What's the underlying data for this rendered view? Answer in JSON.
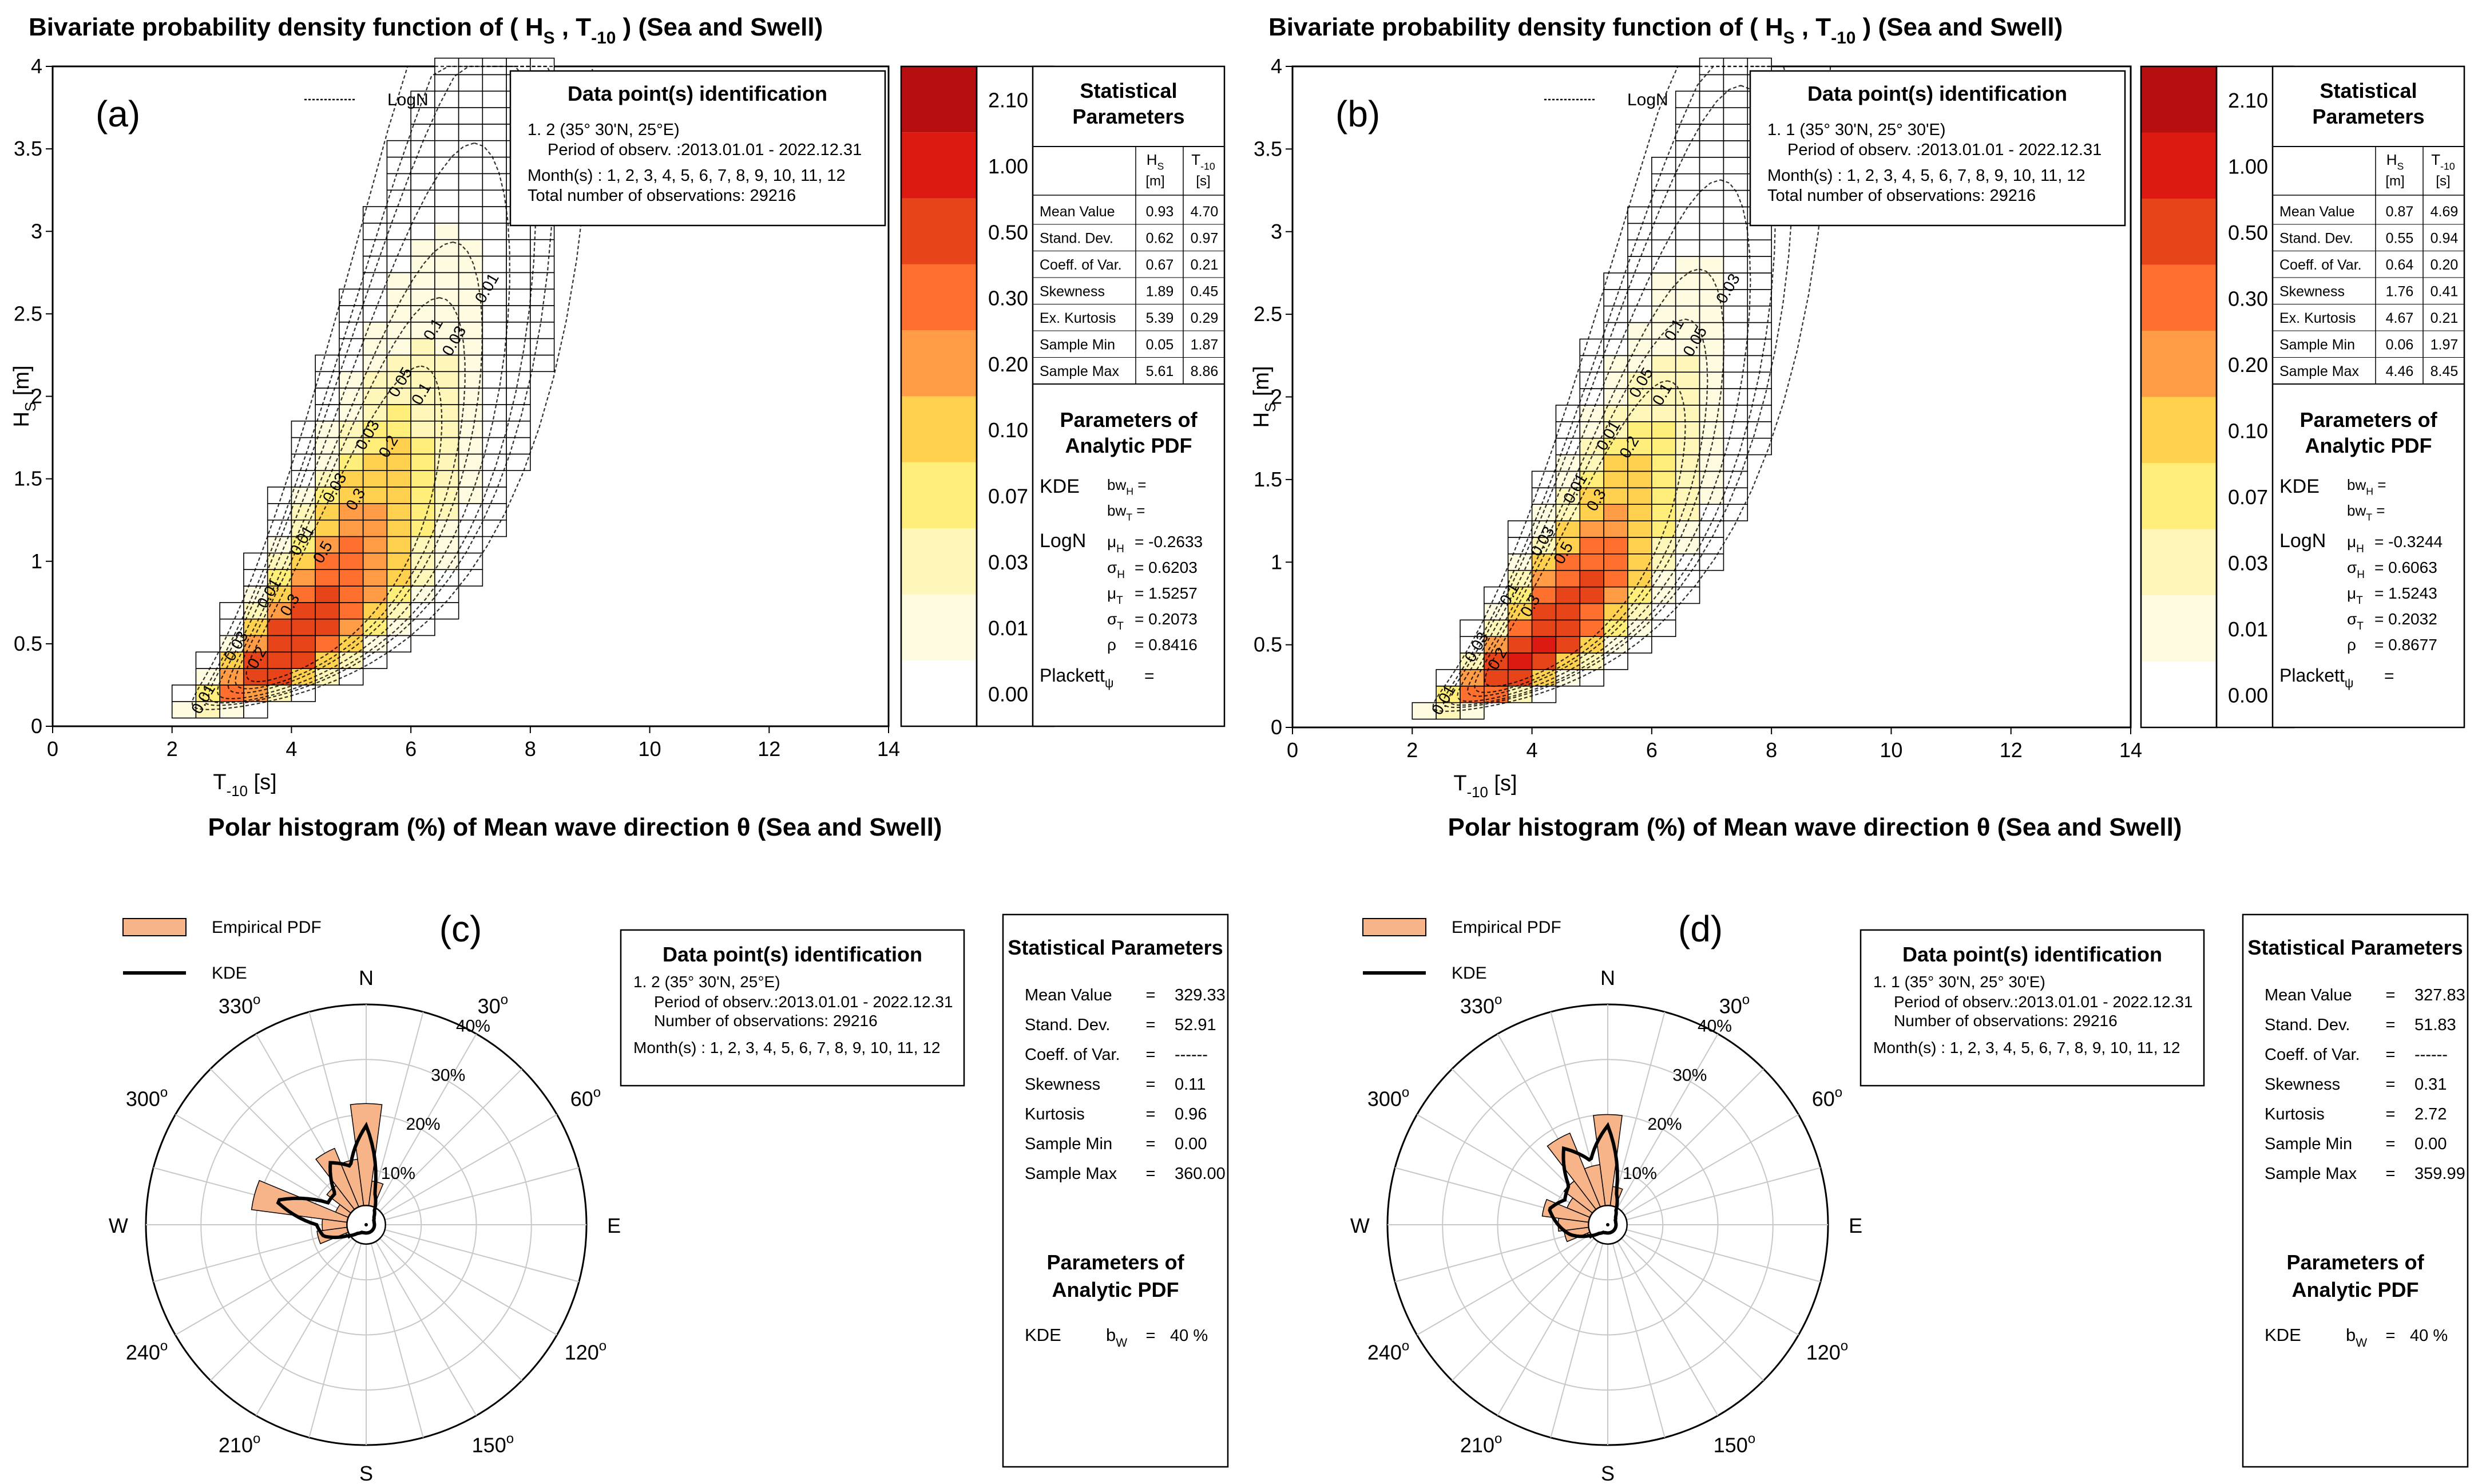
{
  "colors": {
    "legend_bins": [
      "#ffffff",
      "#fffbe0",
      "#fff6b9",
      "#ffef7a",
      "#ffd14e",
      "#ff9c45",
      "#ff6f2e",
      "#e8441a",
      "#dd1a11",
      "#b70e10"
    ],
    "empirical": "#f7b488",
    "outline": "#000000",
    "grid": "#c8c8c8"
  },
  "bivariate_panels": [
    {
      "title_main": "Bivariate probability density function of ( H",
      "title_sub1": "S",
      "title_comma": " , T",
      "title_sub2": "-10",
      "title_tail": " ) (Sea and Swell)",
      "panel_label": "(a)",
      "legend_logn": "LogN",
      "ylabel_main": "H",
      "ylabel_sub": "S",
      "ylabel_unit": " [m]",
      "xlabel_main": "T",
      "xlabel_sub": "-10",
      "xlabel_unit": " [s]",
      "xticks": [
        "0",
        "2",
        "4",
        "6",
        "8",
        "10",
        "12",
        "14"
      ],
      "yticks": [
        "0",
        "0.5",
        "1",
        "1.5",
        "2",
        "2.5",
        "3",
        "3.5",
        "4"
      ],
      "contour_labels": [
        "0.01",
        "0.03",
        "0.01",
        "0.01",
        "0.03",
        "0.03",
        "0.05",
        "0.1",
        "0.2",
        "0.3",
        "0.5",
        "0.3",
        "0.2",
        "0.1",
        "0.03",
        "0.01"
      ],
      "id_box": {
        "title": "Data point(s) identification",
        "line1": "1. 2  (35° 30'N, 25°E)",
        "line2": "Period of observ. :2013.01.01 - 2022.12.31",
        "line3": "Month(s) : 1, 2, 3, 4, 5, 6, 7, 8, 9, 10, 11, 12",
        "line4": "Total number of observations: 29216"
      },
      "colorbar_labels": [
        "0.00",
        "0.01",
        "0.03",
        "0.07",
        "0.10",
        "0.20",
        "0.30",
        "0.50",
        "1.00",
        "2.10"
      ],
      "stats": {
        "title1": "Statistical",
        "title2": "Parameters",
        "col1": "H",
        "col1_sub": "S",
        "col1_unit": "[m]",
        "col2": "T",
        "col2_sub": "-10",
        "col2_unit": "[s]",
        "rows": [
          {
            "label": "Mean Value",
            "v1": "0.93",
            "v2": "4.70"
          },
          {
            "label": "Stand. Dev.",
            "v1": "0.62",
            "v2": "0.97"
          },
          {
            "label": "Coeff. of Var.",
            "v1": "0.67",
            "v2": "0.21"
          },
          {
            "label": "Skewness",
            "v1": "1.89",
            "v2": "0.45"
          },
          {
            "label": "Ex. Kurtosis",
            "v1": "5.39",
            "v2": "0.29"
          },
          {
            "label": "Sample Min",
            "v1": "0.05",
            "v2": "1.87"
          },
          {
            "label": "Sample Max",
            "v1": "5.61",
            "v2": "8.86"
          }
        ]
      },
      "analytic": {
        "title1": "Parameters of",
        "title2": "Analytic PDF",
        "kde": "KDE",
        "bwh": "bw",
        "bwh_sub": "H",
        "bwh_sub2": "S",
        "bwh_eq": " =",
        "bwt": "bw",
        "bwt_sub": "T",
        "bwt_sub2": "-10",
        "bwt_eq": " =",
        "logn": "LogN",
        "params": [
          {
            "sym": "μ",
            "sub": "H",
            "val": "= -0.2633"
          },
          {
            "sym": "σ",
            "sub": "H",
            "val": "= 0.6203"
          },
          {
            "sym": "μ",
            "sub": "T",
            "val": "= 1.5257"
          },
          {
            "sym": "σ",
            "sub": "T",
            "val": "= 0.2073"
          },
          {
            "sym": "ρ",
            "sub": "",
            "val": "= 0.8416"
          }
        ],
        "plackett": "Plackett",
        "plackett_sub": "ψ",
        "plackett_eq": "="
      }
    },
    {
      "title_main": "Bivariate probability density function of ( H",
      "title_sub1": "S",
      "title_comma": " , T",
      "title_sub2": "-10",
      "title_tail": " ) (Sea and Swell)",
      "panel_label": "(b)",
      "legend_logn": "LogN",
      "ylabel_main": "H",
      "ylabel_sub": "S",
      "ylabel_unit": " [m]",
      "xlabel_main": "T",
      "xlabel_sub": "-10",
      "xlabel_unit": " [s]",
      "xticks": [
        "0",
        "2",
        "4",
        "6",
        "8",
        "10",
        "12",
        "14"
      ],
      "yticks": [
        "0",
        "0.5",
        "1",
        "1.5",
        "2",
        "2.5",
        "3",
        "3.5",
        "4"
      ],
      "contour_labels": [
        "0.01",
        "0.03",
        "0.1",
        "0.03",
        "0.01",
        "0.01",
        "0.05",
        "0.1",
        "0.2",
        "0.3",
        "0.5",
        "0.3",
        "0.2",
        "0.1",
        "0.05",
        "0.03"
      ],
      "id_box": {
        "title": "Data point(s) identification",
        "line1": "1. 1  (35° 30'N, 25° 30'E)",
        "line2": "Period of observ. :2013.01.01 - 2022.12.31",
        "line3": "Month(s) : 1, 2, 3, 4, 5, 6, 7, 8, 9, 10, 11, 12",
        "line4": "Total number of observations: 29216"
      },
      "colorbar_labels": [
        "0.00",
        "0.01",
        "0.03",
        "0.07",
        "0.10",
        "0.20",
        "0.30",
        "0.50",
        "1.00",
        "2.10"
      ],
      "stats": {
        "title1": "Statistical",
        "title2": "Parameters",
        "col1": "H",
        "col1_sub": "S",
        "col1_unit": "[m]",
        "col2": "T",
        "col2_sub": "-10",
        "col2_unit": "[s]",
        "rows": [
          {
            "label": "Mean Value",
            "v1": "0.87",
            "v2": "4.69"
          },
          {
            "label": "Stand. Dev.",
            "v1": "0.55",
            "v2": "0.94"
          },
          {
            "label": "Coeff. of Var.",
            "v1": "0.64",
            "v2": "0.20"
          },
          {
            "label": "Skewness",
            "v1": "1.76",
            "v2": "0.41"
          },
          {
            "label": "Ex. Kurtosis",
            "v1": "4.67",
            "v2": "0.21"
          },
          {
            "label": "Sample Min",
            "v1": "0.06",
            "v2": "1.97"
          },
          {
            "label": "Sample Max",
            "v1": "4.46",
            "v2": "8.45"
          }
        ]
      },
      "analytic": {
        "title1": "Parameters of",
        "title2": "Analytic PDF",
        "kde": "KDE",
        "bwh": "bw",
        "bwh_sub": "H",
        "bwh_sub2": "S",
        "bwh_eq": " =",
        "bwt": "bw",
        "bwt_sub": "T",
        "bwt_sub2": "-10",
        "bwt_eq": " =",
        "logn": "LogN",
        "params": [
          {
            "sym": "μ",
            "sub": "H",
            "val": "= -0.3244"
          },
          {
            "sym": "σ",
            "sub": "H",
            "val": "= 0.6063"
          },
          {
            "sym": "μ",
            "sub": "T",
            "val": "= 1.5243"
          },
          {
            "sym": "σ",
            "sub": "T",
            "val": "= 0.2032"
          },
          {
            "sym": "ρ",
            "sub": "",
            "val": "= 0.8677"
          }
        ],
        "plackett": "Plackett",
        "plackett_sub": "ψ",
        "plackett_eq": "="
      }
    }
  ],
  "polar_panels": [
    {
      "title": "Polar histogram (%) of Mean wave direction  θ  (Sea and Swell)",
      "panel_label": "(c)",
      "legend_empirical": "Empirical PDF",
      "legend_kde": "KDE",
      "dir_labels": {
        "N": "N",
        "E": "E",
        "S": "S",
        "W": "W"
      },
      "angle_labels": [
        "30",
        "60",
        "120",
        "150",
        "210",
        "240",
        "300",
        "330"
      ],
      "angle_suffix": "o",
      "radial_labels": [
        "10%",
        "20%",
        "30%",
        "40%"
      ],
      "id_box": {
        "title": "Data point(s) identification",
        "line1": "1. 2  (35° 30'N, 25°E)",
        "line2": "Period of observ.:2013.01.01 - 2022.12.31",
        "line3": "Number of observations: 29216",
        "line4": "Month(s) : 1, 2, 3, 4, 5, 6, 7, 8, 9, 10, 11, 12"
      },
      "stats": {
        "title": "Statistical Parameters",
        "rows": [
          {
            "label": "Mean Value",
            "eq": "=",
            "val": "329.33"
          },
          {
            "label": "Stand. Dev.",
            "eq": "=",
            "val": "52.91"
          },
          {
            "label": "Coeff. of Var.",
            "eq": "=",
            "val": "------"
          },
          {
            "label": "Skewness",
            "eq": "=",
            "val": "0.11"
          },
          {
            "label": "Kurtosis",
            "eq": "=",
            "val": "0.96"
          },
          {
            "label": "Sample Min",
            "eq": "=",
            "val": "0.00"
          },
          {
            "label": "Sample Max",
            "eq": "=",
            "val": "360.00"
          }
        ],
        "analytic_title1": "Parameters of",
        "analytic_title2": "Analytic PDF",
        "kde": "KDE",
        "bw": "b",
        "bw_sub": "W",
        "bw_eq": "=",
        "bw_val": "40 %"
      }
    },
    {
      "title": "Polar histogram (%) of Mean wave direction  θ  (Sea and Swell)",
      "panel_label": "(d)",
      "legend_empirical": "Empirical PDF",
      "legend_kde": "KDE",
      "dir_labels": {
        "N": "N",
        "E": "E",
        "S": "S",
        "W": "W"
      },
      "angle_labels": [
        "30",
        "60",
        "120",
        "150",
        "210",
        "240",
        "300",
        "330"
      ],
      "angle_suffix": "o",
      "radial_labels": [
        "10%",
        "20%",
        "30%",
        "40%"
      ],
      "id_box": {
        "title": "Data point(s) identification",
        "line1": "1. 1  (35° 30'N, 25° 30'E)",
        "line2": "Period of observ.:2013.01.01 - 2022.12.31",
        "line3": "Number of observations: 29216",
        "line4": "Month(s) : 1, 2, 3, 4, 5, 6, 7, 8, 9, 10, 11, 12"
      },
      "stats": {
        "title": "Statistical Parameters",
        "rows": [
          {
            "label": "Mean Value",
            "eq": "=",
            "val": "327.83"
          },
          {
            "label": "Stand. Dev.",
            "eq": "=",
            "val": "51.83"
          },
          {
            "label": "Coeff. of Var.",
            "eq": "=",
            "val": "------"
          },
          {
            "label": "Skewness",
            "eq": "=",
            "val": "0.31"
          },
          {
            "label": "Kurtosis",
            "eq": "=",
            "val": "2.72"
          },
          {
            "label": "Sample Min",
            "eq": "=",
            "val": "0.00"
          },
          {
            "label": "Sample Max",
            "eq": "=",
            "val": "359.99"
          }
        ],
        "analytic_title1": "Parameters of",
        "analytic_title2": "Analytic PDF",
        "kde": "KDE",
        "bw": "b",
        "bw_sub": "W",
        "bw_eq": "=",
        "bw_val": "40 %"
      }
    }
  ],
  "chart_data": [
    {
      "type": "heatmap",
      "title": "Bivariate probability density function of ( HS , T-10 ) (Sea and Swell) (a)",
      "xlabel": "T-10 [s]",
      "ylabel": "HS [m]",
      "xlim": [
        0,
        14
      ],
      "ylim": [
        0,
        4
      ],
      "bin_width_x": 0.4,
      "bin_width_y": 0.1,
      "density_levels": [
        0,
        0.01,
        0.03,
        0.07,
        0.1,
        0.2,
        0.3,
        0.5,
        1.0,
        2.1
      ],
      "logn": {
        "mu_h": -0.2633,
        "sigma_h": 0.6203,
        "mu_t": 1.5257,
        "sigma_t": 0.2073,
        "rho": 0.8416
      },
      "contour_levels": [
        0.01,
        0.03,
        0.05,
        0.1,
        0.2,
        0.3,
        0.5
      ],
      "tmin": 1.6,
      "tmax": 8.4,
      "hmax": 4.0
    },
    {
      "type": "heatmap",
      "title": "Bivariate probability density function of ( HS , T-10 ) (Sea and Swell) (b)",
      "xlabel": "T-10 [s]",
      "ylabel": "HS [m]",
      "xlim": [
        0,
        14
      ],
      "ylim": [
        0,
        4
      ],
      "bin_width_x": 0.4,
      "bin_width_y": 0.1,
      "density_levels": [
        0,
        0.01,
        0.03,
        0.07,
        0.1,
        0.2,
        0.3,
        0.5,
        1.0,
        2.1
      ],
      "logn": {
        "mu_h": -0.3244,
        "sigma_h": 0.6063,
        "mu_t": 1.5243,
        "sigma_t": 0.2032,
        "rho": 0.8677
      },
      "contour_levels": [
        0.01,
        0.03,
        0.05,
        0.1,
        0.2,
        0.3,
        0.5
      ],
      "tmin": 2.0,
      "tmax": 8.0,
      "hmax": 4.0
    },
    {
      "type": "bar",
      "polar": true,
      "title": "Polar histogram (%) of Mean wave direction θ (Sea and Swell) (c)",
      "rlim": [
        0,
        40
      ],
      "sector_width_deg": 15,
      "categories": [
        "0",
        "15",
        "30",
        "45",
        "60",
        "75",
        "90",
        "105",
        "120",
        "135",
        "150",
        "165",
        "180",
        "195",
        "210",
        "225",
        "240",
        "255",
        "270",
        "285",
        "300",
        "315",
        "330",
        "345"
      ],
      "series": [
        {
          "name": "Empirical PDF",
          "values": [
            22,
            8,
            3,
            2,
            1.5,
            1.5,
            1.5,
            1.5,
            1.5,
            1.5,
            1.5,
            1.5,
            1.5,
            1.5,
            1.5,
            2,
            4,
            9,
            8,
            21,
            6,
            9,
            15,
            12
          ]
        },
        {
          "name": "KDE",
          "values": [
            18,
            6,
            3,
            2,
            1.6,
            1.5,
            1.5,
            1.5,
            1.5,
            1.5,
            1.5,
            1.5,
            1.5,
            1.5,
            1.6,
            2.2,
            4,
            8,
            9,
            17,
            8,
            8,
            13,
            11
          ]
        }
      ]
    },
    {
      "type": "bar",
      "polar": true,
      "title": "Polar histogram (%) of Mean wave direction θ (Sea and Swell) (d)",
      "rlim": [
        0,
        40
      ],
      "sector_width_deg": 15,
      "categories": [
        "0",
        "15",
        "30",
        "45",
        "60",
        "75",
        "90",
        "105",
        "120",
        "135",
        "150",
        "165",
        "180",
        "195",
        "210",
        "225",
        "240",
        "255",
        "270",
        "285",
        "300",
        "315",
        "330",
        "345"
      ],
      "series": [
        {
          "name": "Empirical PDF",
          "values": [
            20,
            7,
            3,
            2,
            1.5,
            1.5,
            1.5,
            1.5,
            1.5,
            1.5,
            1.5,
            1.5,
            1.5,
            1.5,
            1.5,
            2,
            4,
            8,
            9,
            12,
            8,
            10,
            18,
            11
          ]
        },
        {
          "name": "KDE",
          "values": [
            18,
            6,
            3,
            2,
            1.6,
            1.5,
            1.5,
            1.5,
            1.5,
            1.5,
            1.5,
            1.5,
            1.5,
            1.5,
            1.6,
            2.2,
            4,
            7,
            9,
            11,
            9,
            10,
            16,
            12
          ]
        }
      ]
    }
  ]
}
